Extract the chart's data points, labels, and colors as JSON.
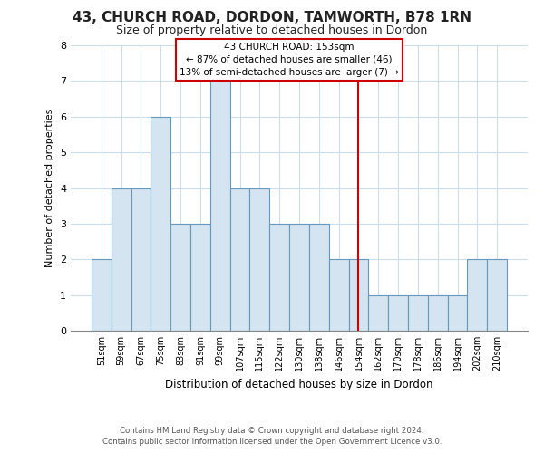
{
  "title": "43, CHURCH ROAD, DORDON, TAMWORTH, B78 1RN",
  "subtitle": "Size of property relative to detached houses in Dordon",
  "xlabel": "Distribution of detached houses by size in Dordon",
  "ylabel": "Number of detached properties",
  "bin_labels": [
    "51sqm",
    "59sqm",
    "67sqm",
    "75sqm",
    "83sqm",
    "91sqm",
    "99sqm",
    "107sqm",
    "115sqm",
    "122sqm",
    "130sqm",
    "138sqm",
    "146sqm",
    "154sqm",
    "162sqm",
    "170sqm",
    "178sqm",
    "186sqm",
    "194sqm",
    "202sqm",
    "210sqm"
  ],
  "bar_heights": [
    2,
    4,
    4,
    6,
    3,
    3,
    7,
    4,
    4,
    3,
    3,
    3,
    2,
    2,
    1,
    1,
    1,
    1,
    1,
    2,
    2
  ],
  "bar_color": "#d4e4f0",
  "bar_edge_color": "#6699bb",
  "ylim": [
    0,
    8
  ],
  "yticks": [
    0,
    1,
    2,
    3,
    4,
    5,
    6,
    7,
    8
  ],
  "property_line_x": 13.0,
  "property_line_color": "#cc0000",
  "annotation_title": "43 CHURCH ROAD: 153sqm",
  "annotation_line1": "← 87% of detached houses are smaller (46)",
  "annotation_line2": "13% of semi-detached houses are larger (7) →",
  "annotation_box_color": "#ffffff",
  "annotation_box_edge_color": "#cc0000",
  "footer_line1": "Contains HM Land Registry data © Crown copyright and database right 2024.",
  "footer_line2": "Contains public sector information licensed under the Open Government Licence v3.0.",
  "plot_bg_color": "#ffffff",
  "fig_bg_color": "#ffffff",
  "grid_color": "#ccddee"
}
